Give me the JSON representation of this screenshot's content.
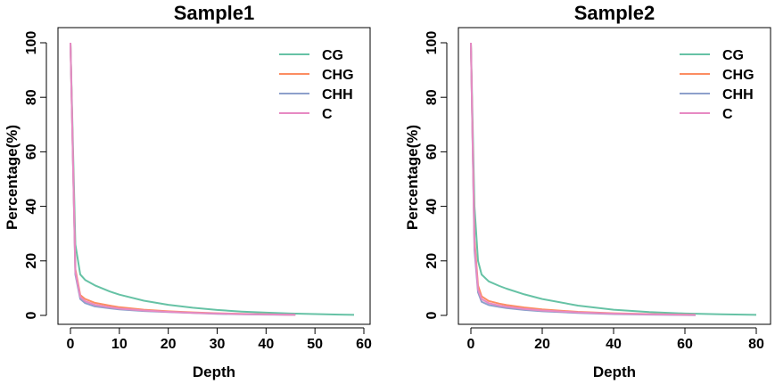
{
  "chart_data": [
    {
      "type": "line",
      "title": "Sample1",
      "xlabel": "Depth",
      "ylabel": "Percentage(%)",
      "xlim": [
        0,
        60
      ],
      "ylim": [
        0,
        100
      ],
      "xticks": [
        "0",
        "10",
        "20",
        "30",
        "40",
        "50",
        "60"
      ],
      "yticks": [
        "0",
        "20",
        "40",
        "60",
        "80",
        "100"
      ],
      "legend_position": "top-right",
      "grid": false,
      "series": [
        {
          "name": "CG",
          "color": "#66C2A5",
          "x": [
            0,
            1,
            2,
            3,
            5,
            8,
            10,
            15,
            20,
            25,
            30,
            35,
            40,
            45,
            50,
            55,
            58
          ],
          "y": [
            100,
            26,
            15,
            13,
            11,
            8.8,
            7.6,
            5.4,
            3.9,
            2.8,
            2.0,
            1.4,
            1.0,
            0.7,
            0.5,
            0.3,
            0.2
          ]
        },
        {
          "name": "CHG",
          "color": "#FC8D62",
          "x": [
            0,
            1,
            2,
            3,
            5,
            8,
            10,
            15,
            20,
            25,
            30,
            35,
            40,
            46
          ],
          "y": [
            100,
            17,
            7.5,
            6.0,
            4.6,
            3.6,
            3.0,
            2.1,
            1.5,
            1.1,
            0.8,
            0.6,
            0.4,
            0.2
          ]
        },
        {
          "name": "CHH",
          "color": "#8DA0CB",
          "x": [
            0,
            1,
            2,
            3,
            5,
            8,
            10,
            15,
            20,
            25,
            30,
            35,
            40,
            46
          ],
          "y": [
            100,
            15,
            6.0,
            4.5,
            3.3,
            2.6,
            2.2,
            1.6,
            1.2,
            0.9,
            0.6,
            0.4,
            0.3,
            0.2
          ]
        },
        {
          "name": "C",
          "color": "#E78AC3",
          "x": [
            0,
            1,
            2,
            3,
            5,
            8,
            10,
            15,
            20,
            25,
            30,
            35,
            40,
            46
          ],
          "y": [
            100,
            16,
            6.8,
            5.2,
            3.9,
            3.0,
            2.5,
            1.8,
            1.3,
            0.95,
            0.7,
            0.5,
            0.35,
            0.2
          ]
        }
      ]
    },
    {
      "type": "line",
      "title": "Sample2",
      "xlabel": "Depth",
      "ylabel": "Percentage(%)",
      "xlim": [
        0,
        80
      ],
      "ylim": [
        0,
        100
      ],
      "xticks": [
        "0",
        "20",
        "40",
        "60",
        "80"
      ],
      "yticks": [
        "0",
        "20",
        "40",
        "60",
        "80",
        "100"
      ],
      "legend_position": "top-right",
      "grid": false,
      "series": [
        {
          "name": "CG",
          "color": "#66C2A5",
          "x": [
            0,
            1,
            2,
            3,
            5,
            8,
            10,
            15,
            20,
            30,
            40,
            50,
            60,
            70,
            80
          ],
          "y": [
            100,
            40,
            20,
            15,
            12.5,
            10.8,
            9.8,
            7.7,
            6.0,
            3.6,
            2.1,
            1.2,
            0.7,
            0.4,
            0.2
          ]
        },
        {
          "name": "CHG",
          "color": "#FC8D62",
          "x": [
            0,
            1,
            2,
            3,
            5,
            8,
            10,
            15,
            20,
            30,
            40,
            50,
            63
          ],
          "y": [
            100,
            28,
            11,
            7.0,
            5.3,
            4.3,
            3.8,
            2.9,
            2.2,
            1.3,
            0.8,
            0.5,
            0.2
          ]
        },
        {
          "name": "CHH",
          "color": "#8DA0CB",
          "x": [
            0,
            1,
            2,
            3,
            5,
            8,
            10,
            15,
            20,
            30,
            40,
            50,
            63
          ],
          "y": [
            100,
            24,
            8.5,
            5.0,
            3.8,
            3.1,
            2.7,
            2.0,
            1.5,
            0.9,
            0.5,
            0.3,
            0.1
          ]
        },
        {
          "name": "C",
          "color": "#E78AC3",
          "x": [
            0,
            1,
            2,
            3,
            5,
            8,
            10,
            15,
            20,
            30,
            40,
            50,
            63
          ],
          "y": [
            100,
            26,
            9.5,
            6.0,
            4.5,
            3.6,
            3.2,
            2.4,
            1.8,
            1.1,
            0.65,
            0.4,
            0.15
          ]
        }
      ]
    }
  ]
}
